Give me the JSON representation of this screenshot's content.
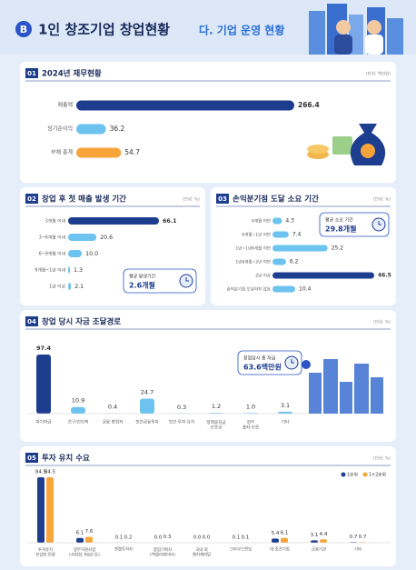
{
  "header": {
    "badge": "B",
    "title": "1인 창조기업 창업현황",
    "subtitle": "다. 기업 운영 현황"
  },
  "chart_data": [
    {
      "type": "hbar",
      "number": "01",
      "title": "2024년 재무현황",
      "unit": "(단위: 백만원)",
      "categories": [
        "매출액",
        "당기순이익",
        "부채 총계"
      ],
      "values": [
        266.4,
        36.2,
        54.7
      ],
      "colors": [
        "#1d3d8f",
        "#6cc3ef",
        "#f7a43a"
      ]
    },
    {
      "type": "hbar",
      "number": "02",
      "title": "창업 후 첫 매출 발생 기간",
      "unit": "(단위: %)",
      "categories": [
        "3개월 이내",
        "3~6개월 이내",
        "6~9개월 이내",
        "9개월~1년 이내",
        "1년 이상"
      ],
      "values": [
        66.1,
        20.6,
        10.0,
        1.3,
        2.1
      ],
      "value_labels": [
        "66.1",
        "20.6",
        "10.0",
        "1.3",
        "2.1"
      ],
      "colors": [
        "#1d3d8f",
        "#6cc3ef",
        "#6cc3ef",
        "#6cc3ef",
        "#6cc3ef"
      ],
      "callout": {
        "label": "평균 발생기간",
        "value": "2.6개월"
      }
    },
    {
      "type": "hbar",
      "number": "03",
      "title": "손익분기점 도달 소요 기간",
      "unit": "(단위: %)",
      "categories": [
        "6개월 미만",
        "6개월~1년 미만",
        "1년~1년6개월 미만",
        "1년6개월~2년 미만",
        "2년 이상",
        "손익분기점 도달하지 않음"
      ],
      "values": [
        4.3,
        7.4,
        25.2,
        6.2,
        46.5,
        10.4
      ],
      "colors": [
        "#6cc3ef",
        "#6cc3ef",
        "#6cc3ef",
        "#6cc3ef",
        "#1d3d8f",
        "#6cc3ef"
      ],
      "callout": {
        "label": "평균 소요 기간",
        "value": "29.8개월"
      }
    },
    {
      "type": "vbar",
      "number": "04",
      "title": "창업 당시 자금 조달경로",
      "unit": "(단위: %)",
      "categories": [
        "자기자금",
        "친구/친인척",
        "금융 창업자",
        "민간금융투자",
        "민간 투자 유치",
        "정책융자금\n보조금",
        "정부\n출자·보증",
        "기타"
      ],
      "values": [
        97.4,
        10.9,
        0.4,
        24.7,
        0.3,
        1.2,
        1.0,
        3.1
      ],
      "value_labels": [
        "97.4",
        "10.9",
        "0.4",
        "24.7",
        "0.3",
        "1.2",
        "1.0",
        "3.1"
      ],
      "colors": [
        "#1d3d8f",
        "#6cc3ef",
        "#6cc3ef",
        "#6cc3ef",
        "#6cc3ef",
        "#6cc3ef",
        "#6cc3ef",
        "#6cc3ef"
      ],
      "callout": {
        "label": "창업당시 총 자금",
        "value": "63.6백만원"
      }
    },
    {
      "type": "grouped",
      "number": "05",
      "title": "투자 유치 수요",
      "unit": "(단위: %)",
      "categories": [
        "투자유치\n컨설팅·연결",
        "정부지원사업\n(사업화, R&D 등)",
        "엔젤투자자",
        "창업기획자\n(액셀러레이터)",
        "국내·외\n벤처캐피탈",
        "크라우드펀딩",
        "대·중견기업",
        "금융기관",
        "기타"
      ],
      "series": [
        {
          "name": "1순위",
          "color": "#1d3d8f",
          "values": [
            84.5,
            6.1,
            0.1,
            0.0,
            0.0,
            0.1,
            5.4,
            3.1,
            0.7
          ],
          "value_labels": [
            "84.5",
            "6.1",
            "0.1",
            "0.0",
            "0.0",
            "0.1",
            "5.4",
            "3.1",
            "0.7"
          ]
        },
        {
          "name": "1+2순위",
          "color": "#f7a43a",
          "values": [
            84.5,
            7.6,
            0.2,
            0.3,
            0.0,
            0.1,
            6.1,
            4.4,
            0.7
          ],
          "value_labels": [
            "84.5",
            "7.6",
            "0.2",
            "0.3",
            "0.0",
            "0.1",
            "6.1",
            "4.4",
            "0.7"
          ]
        }
      ]
    }
  ]
}
